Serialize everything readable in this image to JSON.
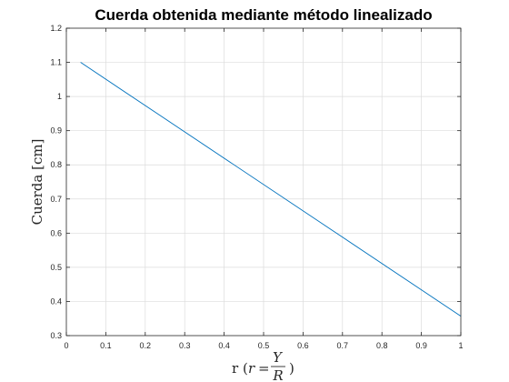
{
  "chart_data": {
    "type": "line",
    "title": "Cuerda obtenida mediante método linealizado",
    "xlabel": {
      "prefix": "r",
      "open": "(",
      "var": "r",
      "eq": "=",
      "num": "Y",
      "den": "R",
      "close": ")"
    },
    "ylabel": "Cuerda [cm]",
    "xlim": [
      0,
      1
    ],
    "ylim": [
      0.3,
      1.2
    ],
    "xticks": [
      0,
      0.1,
      0.2,
      0.3,
      0.4,
      0.5,
      0.6,
      0.7,
      0.8,
      0.9,
      1
    ],
    "xtick_labels": [
      "0",
      "0.1",
      "0.2",
      "0.3",
      "0.4",
      "0.5",
      "0.6",
      "0.7",
      "0.8",
      "0.9",
      "1"
    ],
    "yticks": [
      0.3,
      0.4,
      0.5,
      0.6,
      0.7,
      0.8,
      0.9,
      1,
      1.1,
      1.2
    ],
    "ytick_labels": [
      "0.3",
      "0.4",
      "0.5",
      "0.6",
      "0.7",
      "0.8",
      "0.9",
      "1",
      "1.1",
      "1.2"
    ],
    "grid": true,
    "series": [
      {
        "x": [
          0.036,
          1.0
        ],
        "y": [
          1.1,
          0.357
        ],
        "color": "#0072bd"
      }
    ]
  }
}
